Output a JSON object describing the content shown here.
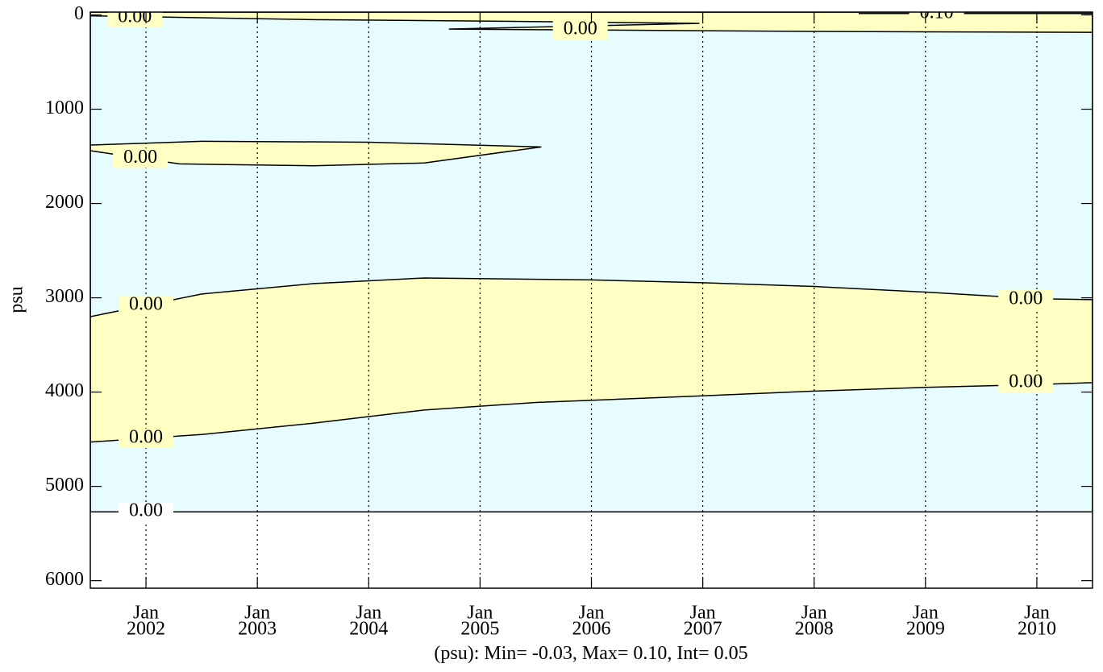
{
  "chart_data": {
    "type": "contour",
    "y_label": "psu",
    "footer": "(psu): Min= -0.03, Max= 0.10, Int= 0.05",
    "xlim": [
      2001.5,
      2010.5
    ],
    "ylim": [
      -30,
      6080
    ],
    "y_inverted": true,
    "xticks": [
      {
        "value": 2002,
        "label": "Jan",
        "year": "2002"
      },
      {
        "value": 2003,
        "label": "Jan",
        "year": "2003"
      },
      {
        "value": 2004,
        "label": "Jan",
        "year": "2004"
      },
      {
        "value": 2005,
        "label": "Jan",
        "year": "2005"
      },
      {
        "value": 2006,
        "label": "Jan",
        "year": "2006"
      },
      {
        "value": 2007,
        "label": "Jan",
        "year": "2007"
      },
      {
        "value": 2008,
        "label": "Jan",
        "year": "2008"
      },
      {
        "value": 2009,
        "label": "Jan",
        "year": "2009"
      },
      {
        "value": 2010,
        "label": "Jan",
        "year": "2010"
      }
    ],
    "yticks": [
      0,
      1000,
      2000,
      3000,
      4000,
      5000,
      6000
    ],
    "grid": "x",
    "contours": [
      {
        "level": 0,
        "label": "0.00",
        "fill": "#e6fcfe",
        "x": [
          2001.5,
          2010.5,
          2010.5,
          2001.5,
          2001.5
        ],
        "y": [
          -30,
          -30,
          5270,
          5270,
          -30
        ]
      },
      {
        "level": 0,
        "label": "0.00",
        "fill": "#ffffc4",
        "x": [
          2001.5,
          2002.5,
          2003.5,
          2005,
          2006.97,
          2004.72,
          2006,
          2008,
          2010.5,
          2010.5,
          2001.5
        ],
        "y": [
          10,
          30,
          50,
          65,
          90,
          150,
          160,
          175,
          185,
          -30,
          -30
        ]
      },
      {
        "level": 0.1,
        "label": "0.10",
        "fill": "none",
        "x": [
          2008.4,
          2010.5
        ],
        "y": [
          -15,
          -15
        ]
      },
      {
        "level": 0,
        "label": "0.00",
        "fill": "#ffffc4",
        "x": [
          2001.5,
          2002.5,
          2004,
          2005.55,
          2004.5,
          2003.5,
          2002.3,
          2001.95,
          2001.5
        ],
        "y": [
          1380,
          1340,
          1350,
          1400,
          1570,
          1600,
          1580,
          1520,
          1440
        ]
      },
      {
        "level": 0,
        "label": "0.00",
        "fill": "#ffffc4",
        "x": [
          2001.5,
          2002,
          2002.5,
          2003.5,
          2004.5,
          2006,
          2007,
          2008,
          2009,
          2010,
          2010.5,
          2010.5,
          2010,
          2009,
          2008,
          2007,
          2005.5,
          2004.5,
          2003.5,
          2002.5,
          2002,
          2001.5
        ],
        "y": [
          3200,
          3080,
          2960,
          2850,
          2790,
          2810,
          2840,
          2880,
          2940,
          3010,
          3020,
          3900,
          3920,
          3950,
          3990,
          4040,
          4110,
          4190,
          4330,
          4450,
          4490,
          4530
        ]
      }
    ]
  }
}
